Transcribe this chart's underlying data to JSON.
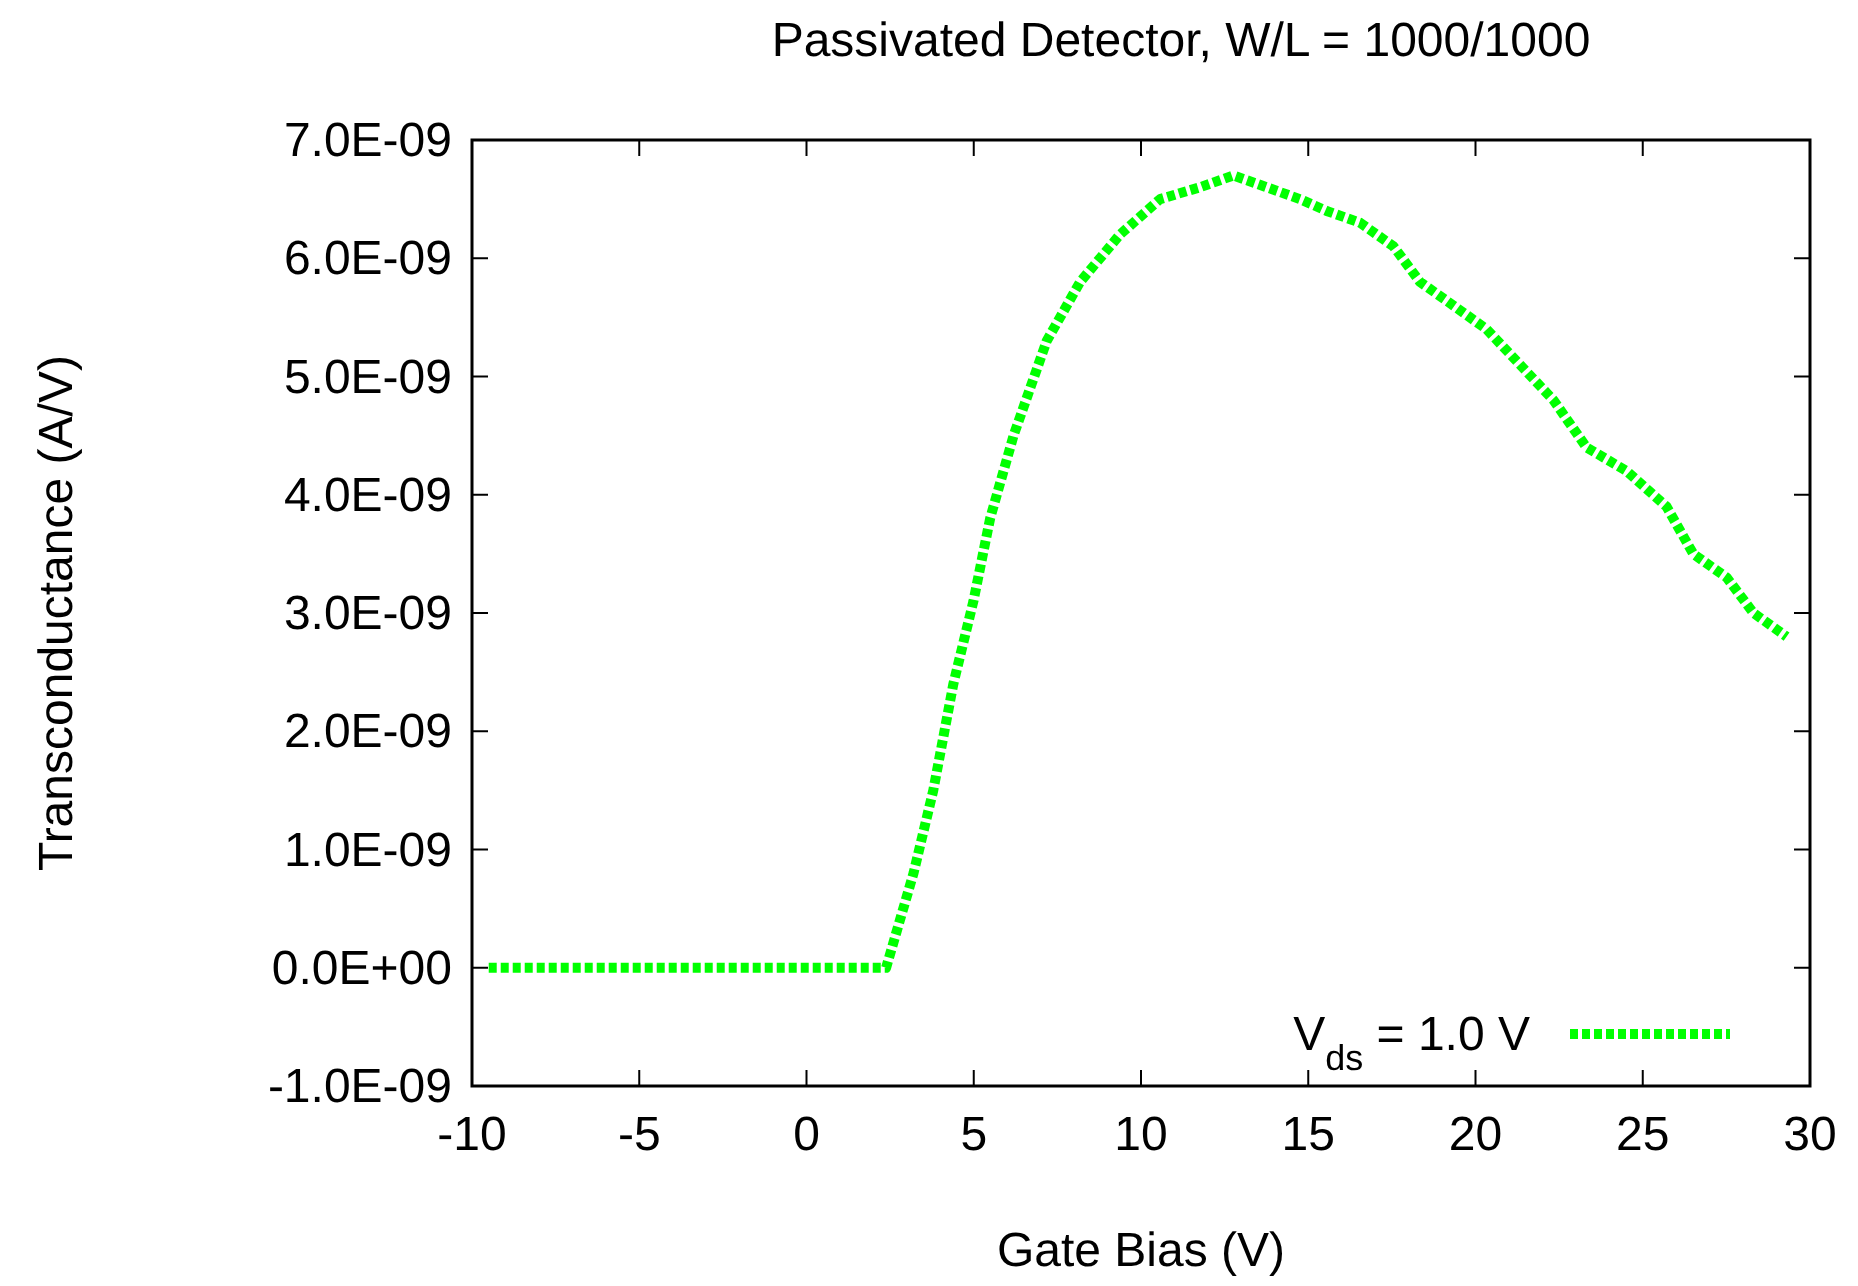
{
  "chart_data": {
    "type": "line",
    "title": "Passivated Detector, W/L = 1000/1000",
    "xlabel": "Gate Bias (V)",
    "ylabel": "Transconductance (A/V)",
    "x": [
      -9.5,
      -8,
      -6,
      -4,
      -2,
      0,
      1,
      2,
      2.38,
      3.2,
      3.79,
      4.39,
      4.99,
      5.49,
      6.19,
      7.18,
      8.18,
      9.37,
      10.57,
      11.76,
      12.76,
      13.76,
      14.75,
      15.55,
      16.55,
      17.55,
      18.34,
      19.34,
      20.33,
      21.33,
      22.33,
      23.32,
      24.52,
      25.71,
      26.51,
      27.51,
      28.31,
      29.3
    ],
    "series": [
      {
        "name": "V$_{ds}$ = 1.0 V",
        "color": "#00ff00",
        "values": [
          0,
          0,
          0,
          0,
          0,
          0,
          0,
          0,
          0,
          8e-10,
          1.5e-09,
          2.4e-09,
          3.1e-09,
          3.8e-09,
          4.5e-09,
          5.3e-09,
          5.8e-09,
          6.2e-09,
          6.5e-09,
          6.6e-09,
          6.7e-09,
          6.6e-09,
          6.5e-09,
          6.4e-09,
          6.3e-09,
          6.1e-09,
          5.8e-09,
          5.6e-09,
          5.4e-09,
          5.1e-09,
          4.8e-09,
          4.4e-09,
          4.2e-09,
          3.9e-09,
          3.5e-09,
          3.3e-09,
          3e-09,
          2.8e-09
        ]
      }
    ],
    "xlim": [
      -10,
      30
    ],
    "xticks": [
      -10,
      -5,
      0,
      5,
      10,
      15,
      20,
      25,
      30
    ],
    "ylim": [
      -1e-09,
      7e-09
    ],
    "yticks": [
      {
        "value": -1e-09,
        "label": "-1.0E-09"
      },
      {
        "value": 0,
        "label": "0.0E+00"
      },
      {
        "value": 1e-09,
        "label": "1.0E-09"
      },
      {
        "value": 2e-09,
        "label": "2.0E-09"
      },
      {
        "value": 3e-09,
        "label": "3.0E-09"
      },
      {
        "value": 4e-09,
        "label": "4.0E-09"
      },
      {
        "value": 5e-09,
        "label": "5.0E-09"
      },
      {
        "value": 6e-09,
        "label": "6.0E-09"
      },
      {
        "value": 7e-09,
        "label": "7.0E-09"
      }
    ],
    "grid": false,
    "legend": "bottom right",
    "line_style": "dotted"
  }
}
